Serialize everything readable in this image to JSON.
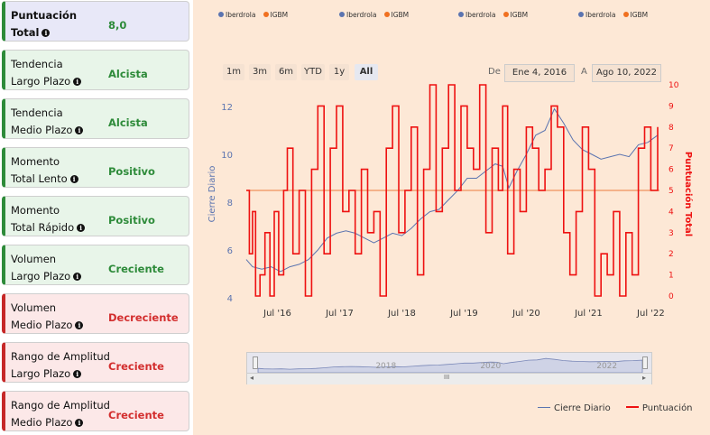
{
  "sidebar": {
    "total": {
      "label1": "Puntuación",
      "label2": "Total",
      "value": "8,0"
    },
    "cards": [
      {
        "label1": "Tendencia",
        "label2": "Largo Plazo",
        "value": "Alcista",
        "status": "green"
      },
      {
        "label1": "Tendencia",
        "label2": "Medio Plazo",
        "value": "Alcista",
        "status": "green"
      },
      {
        "label1": "Momento",
        "label2": "Total Lento",
        "value": "Positivo",
        "status": "green"
      },
      {
        "label1": "Momento",
        "label2": "Total Rápido",
        "value": "Positivo",
        "status": "green"
      },
      {
        "label1": "Volumen",
        "label2": "Largo Plazo",
        "value": "Creciente",
        "status": "green"
      },
      {
        "label1": "Volumen",
        "label2": "Medio Plazo",
        "value": "Decreciente",
        "status": "red"
      },
      {
        "label1": "Rango de Amplitud",
        "label2": "Largo Plazo",
        "value": "Creciente",
        "status": "red"
      },
      {
        "label1": "Rango de Amplitud",
        "label2": "Medio Plazo",
        "value": "Creciente",
        "status": "red"
      }
    ]
  },
  "top_legends": [
    {
      "a": "Iberdrola",
      "b": "IGBM"
    },
    {
      "a": "Iberdrola",
      "b": "IGBM"
    },
    {
      "a": "Iberdrola",
      "b": "IGBM"
    },
    {
      "a": "Iberdrola",
      "b": "IGBM"
    }
  ],
  "range_selector": {
    "buttons": [
      "1m",
      "3m",
      "6m",
      "YTD",
      "1y",
      "All"
    ],
    "selected": "All",
    "from_label": "De",
    "from_value": "Ene 4, 2016",
    "to_label": "A",
    "to_value": "Ago 10, 2022"
  },
  "colors": {
    "price": "#5b74b0",
    "score": "#ee1111",
    "green": "#2e8b3a",
    "red": "#d32f2f"
  },
  "icons": {
    "info": "info-icon"
  },
  "chart_data": {
    "type": "line",
    "x_tick_labels": [
      "Jul '16",
      "Jul '17",
      "Jul '18",
      "Jul '19",
      "Jul '20",
      "Jul '21",
      "Jul '22"
    ],
    "y_left_label": "Cierre Diario",
    "y_left_ticks": [
      4,
      6,
      8,
      10,
      12
    ],
    "y_right_label": "Puntuación Total",
    "y_right_ticks": [
      0,
      1,
      2,
      3,
      4,
      5,
      6,
      7,
      8,
      9,
      10
    ],
    "reference_line": 5,
    "series": [
      {
        "name": "Cierre Diario",
        "axis": "left",
        "x": [
          2016.0,
          2016.1,
          2016.25,
          2016.4,
          2016.55,
          2016.7,
          2016.85,
          2017.0,
          2017.15,
          2017.3,
          2017.45,
          2017.6,
          2017.75,
          2017.9,
          2018.05,
          2018.2,
          2018.35,
          2018.5,
          2018.65,
          2018.8,
          2018.95,
          2019.1,
          2019.25,
          2019.4,
          2019.55,
          2019.7,
          2019.85,
          2020.0,
          2020.12,
          2020.22,
          2020.35,
          2020.5,
          2020.65,
          2020.8,
          2020.95,
          2021.1,
          2021.25,
          2021.4,
          2021.55,
          2021.7,
          2021.85,
          2022.0,
          2022.15,
          2022.3,
          2022.45,
          2022.61
        ],
        "y": [
          5.6,
          5.3,
          5.2,
          5.3,
          5.1,
          5.3,
          5.4,
          5.6,
          6.0,
          6.5,
          6.7,
          6.8,
          6.7,
          6.5,
          6.3,
          6.5,
          6.7,
          6.6,
          6.9,
          7.3,
          7.6,
          7.7,
          8.1,
          8.5,
          9.0,
          9.0,
          9.3,
          9.6,
          9.5,
          8.6,
          9.3,
          10.0,
          10.8,
          11.0,
          11.9,
          11.3,
          10.6,
          10.2,
          10.0,
          9.8,
          9.9,
          10.0,
          9.9,
          10.4,
          10.5,
          10.8
        ]
      },
      {
        "name": "Puntuación",
        "axis": "right",
        "x": [
          2016.0,
          2016.05,
          2016.1,
          2016.15,
          2016.22,
          2016.3,
          2016.38,
          2016.45,
          2016.52,
          2016.6,
          2016.66,
          2016.75,
          2016.85,
          2016.95,
          2017.05,
          2017.15,
          2017.25,
          2017.35,
          2017.45,
          2017.55,
          2017.65,
          2017.75,
          2017.85,
          2017.95,
          2018.05,
          2018.15,
          2018.25,
          2018.35,
          2018.45,
          2018.55,
          2018.65,
          2018.75,
          2018.85,
          2018.95,
          2019.05,
          2019.15,
          2019.25,
          2019.35,
          2019.45,
          2019.55,
          2019.65,
          2019.75,
          2019.85,
          2019.95,
          2020.05,
          2020.12,
          2020.2,
          2020.3,
          2020.4,
          2020.5,
          2020.6,
          2020.7,
          2020.8,
          2020.9,
          2021.0,
          2021.1,
          2021.2,
          2021.3,
          2021.4,
          2021.5,
          2021.6,
          2021.7,
          2021.8,
          2021.9,
          2022.0,
          2022.1,
          2022.2,
          2022.3,
          2022.4,
          2022.5,
          2022.61
        ],
        "y": [
          5,
          2,
          4,
          0,
          1,
          3,
          0,
          4,
          1,
          5,
          7,
          2,
          5,
          0,
          6,
          9,
          2,
          7,
          9,
          4,
          5,
          2,
          6,
          3,
          4,
          0,
          7,
          9,
          3,
          5,
          8,
          1,
          6,
          10,
          4,
          7,
          10,
          5,
          9,
          7,
          6,
          10,
          3,
          7,
          5,
          9,
          2,
          6,
          4,
          8,
          7,
          5,
          6,
          9,
          8,
          3,
          1,
          4,
          8,
          6,
          0,
          2,
          1,
          4,
          0,
          3,
          1,
          7,
          8,
          5,
          8
        ]
      }
    ]
  },
  "navigator": {
    "labels": [
      "2018",
      "2020",
      "2022"
    ],
    "scroll_grip": "III"
  },
  "bottom_legend": {
    "price": "Cierre Diario",
    "score": "Puntuación"
  }
}
